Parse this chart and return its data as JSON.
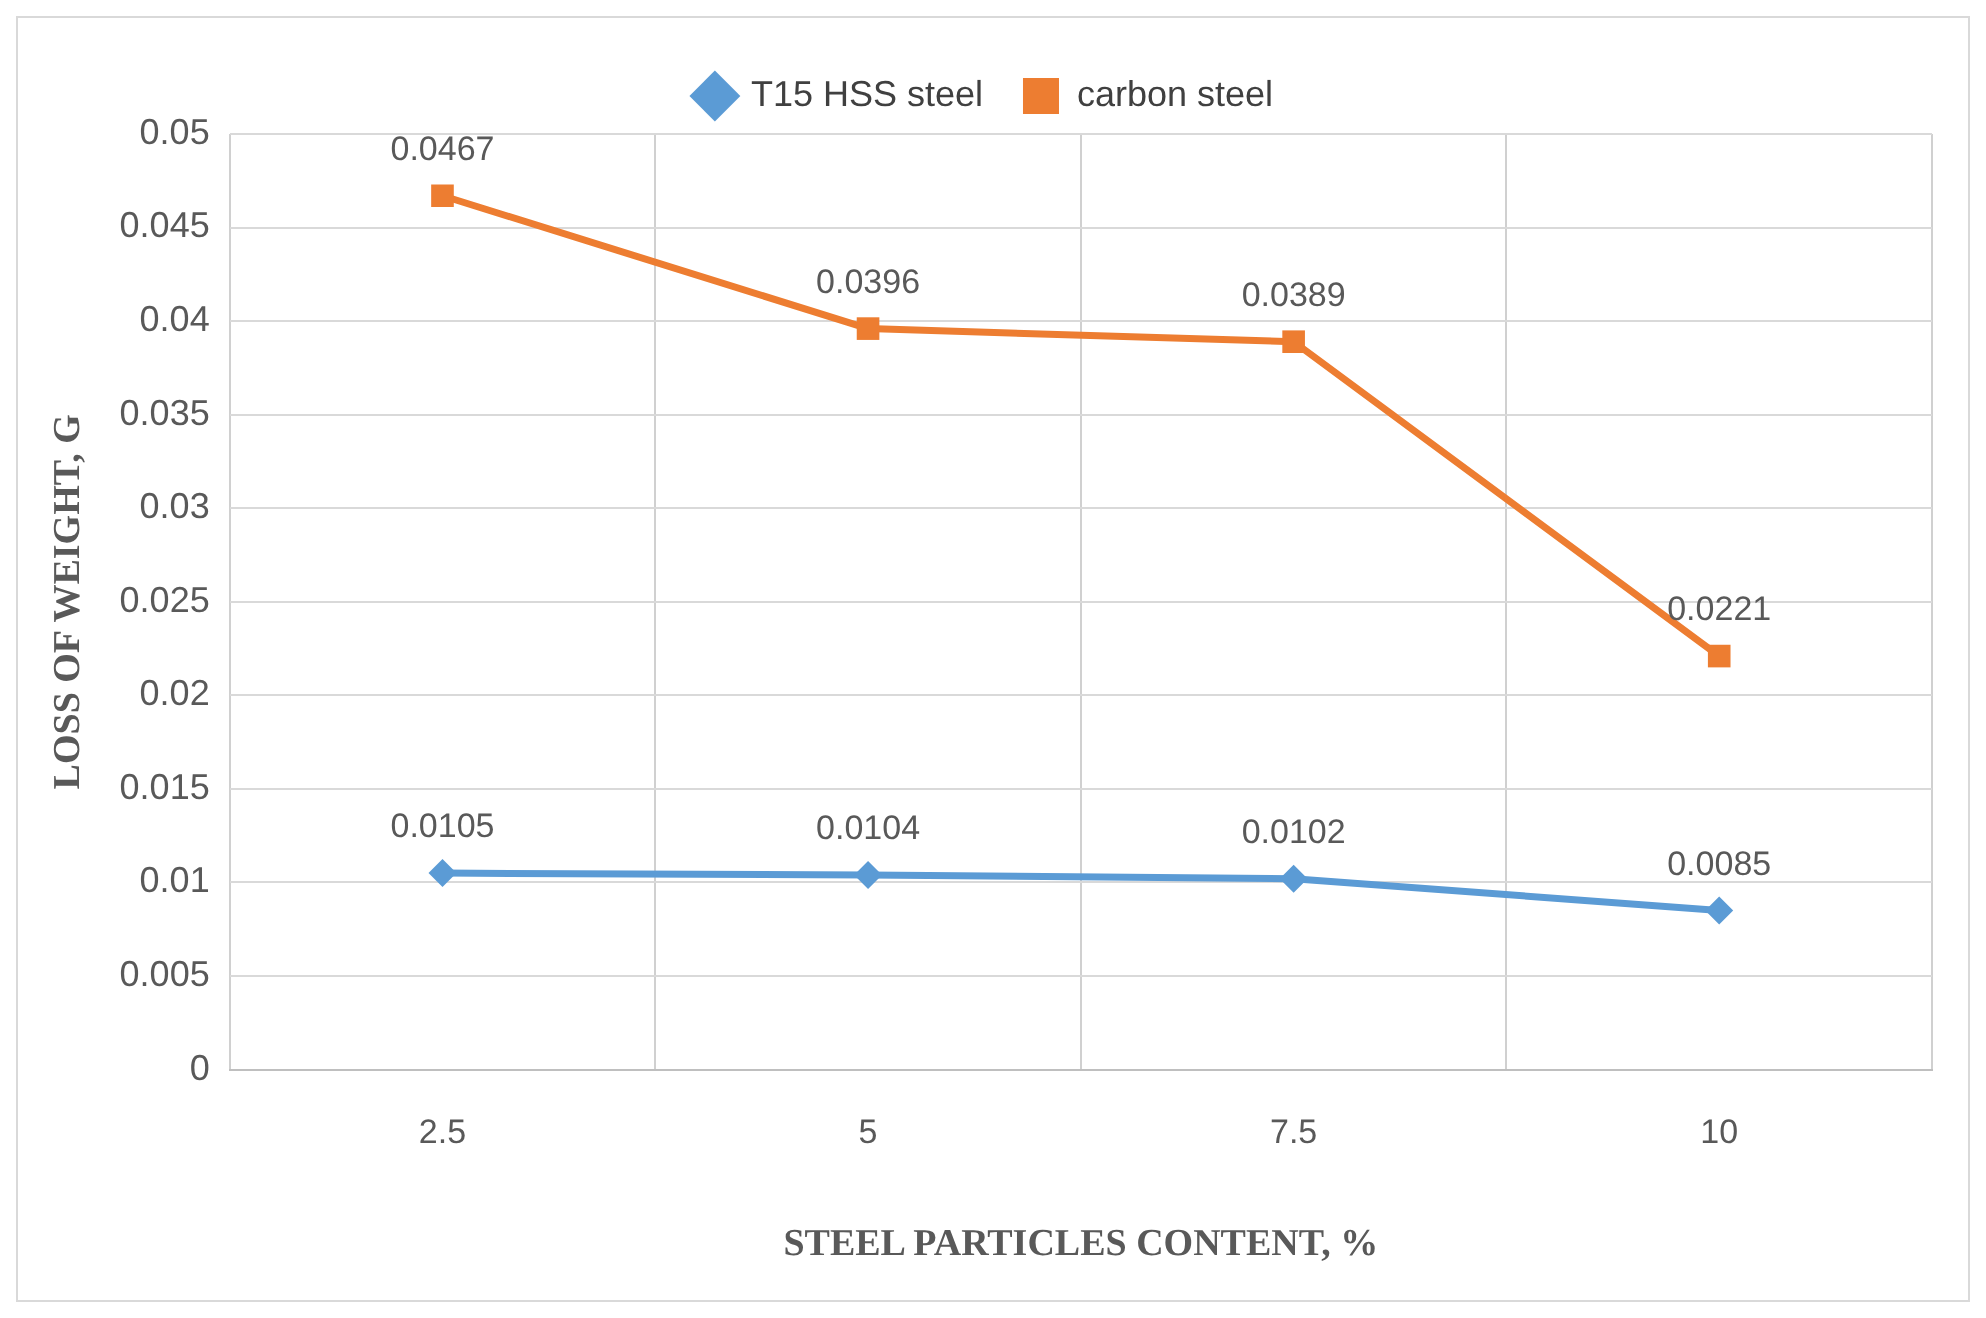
{
  "chart_data": {
    "type": "line",
    "xlabel": "STEEL PARTICLES CONTENT, %",
    "ylabel": "LOSS OF WEIGHT, G",
    "categories": [
      "2.5",
      "5",
      "7.5",
      "10"
    ],
    "series": [
      {
        "name": "T15 HSS steel",
        "color": "#5b9bd5",
        "marker": "diamond",
        "values": [
          0.0105,
          0.0104,
          0.0102,
          0.0085
        ]
      },
      {
        "name": "carbon steel",
        "color": "#ed7d31",
        "marker": "square",
        "values": [
          0.0467,
          0.0396,
          0.0389,
          0.0221
        ]
      }
    ],
    "ylim": [
      0,
      0.05
    ],
    "yticks": [
      0,
      0.005,
      0.01,
      0.015,
      0.02,
      0.025,
      0.03,
      0.035,
      0.04,
      0.045,
      0.05
    ],
    "grid": true,
    "legend": "top",
    "data_labels": true
  }
}
